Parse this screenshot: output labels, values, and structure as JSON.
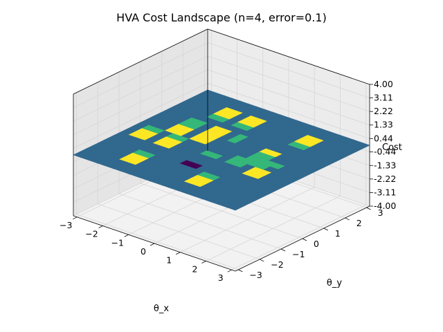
{
  "chart_data": {
    "type": "surface3d",
    "title": "HVA Cost Landscape (n=4, error=0.1)",
    "xlabel": "θ_x",
    "ylabel": "θ_y",
    "zlabel": "Cost",
    "xlim": [
      -3.14159,
      3.14159
    ],
    "ylim": [
      -3.14159,
      3.14159
    ],
    "zlim": [
      -4.0,
      4.0
    ],
    "x_ticks": [
      "−3",
      "−2",
      "−1",
      "0",
      "1",
      "2",
      "3"
    ],
    "y_ticks": [
      "−3",
      "−2",
      "−1",
      "0",
      "1",
      "2",
      "3"
    ],
    "z_ticks": [
      "-4.00",
      "-3.11",
      "-2.22",
      "-1.33",
      "-0.44",
      "0.44",
      "1.33",
      "2.22",
      "3.11",
      "4.00"
    ],
    "colormap": "viridis",
    "colors": {
      "base": "#31688e",
      "high": "#fde725",
      "mid": "#35b779",
      "low": "#440154",
      "pane": "#f2f2f2",
      "grid": "#d6d6d6"
    },
    "surface": {
      "grid_size": 20,
      "base_value": 0.0,
      "regions": [
        {
          "i": [
            4,
            5
          ],
          "j": [
            16,
            17
          ],
          "value": 4.0
        },
        {
          "i": [
            7,
            8
          ],
          "j": [
            16,
            17
          ],
          "value": 4.0
        },
        {
          "i": [
            14,
            15
          ],
          "j": [
            16,
            17
          ],
          "value": 4.0
        },
        {
          "i": [
            4,
            5
          ],
          "j": [
            15,
            15
          ],
          "value": 2.0
        },
        {
          "i": [
            7,
            8
          ],
          "j": [
            15,
            15
          ],
          "value": 2.0
        },
        {
          "i": [
            14,
            15
          ],
          "j": [
            15,
            15
          ],
          "value": 2.0
        },
        {
          "i": [
            3,
            4
          ],
          "j": [
            12,
            13
          ],
          "value": 2.0
        },
        {
          "i": [
            9,
            9
          ],
          "j": [
            12,
            13
          ],
          "value": 2.0
        },
        {
          "i": [
            6,
            7
          ],
          "j": [
            12,
            13
          ],
          "value": 4.0
        },
        {
          "i": [
            3,
            4
          ],
          "j": [
            10,
            11
          ],
          "value": 4.0
        },
        {
          "i": [
            6,
            7
          ],
          "j": [
            10,
            11
          ],
          "value": 4.0
        },
        {
          "i": [
            9,
            10
          ],
          "j": [
            8,
            8
          ],
          "value": 2.0
        },
        {
          "i": [
            9,
            10
          ],
          "j": [
            5,
            5
          ],
          "value": -4.0
        },
        {
          "i": [
            13,
            14
          ],
          "j": [
            10,
            11
          ],
          "value": 2.0
        },
        {
          "i": [
            13,
            14
          ],
          "j": [
            12,
            12
          ],
          "value": 4.0
        },
        {
          "i": [
            1,
            2
          ],
          "j": [
            7,
            8
          ],
          "value": 4.0
        },
        {
          "i": [
            1,
            2
          ],
          "j": [
            9,
            9
          ],
          "value": 2.0
        },
        {
          "i": [
            4,
            5
          ],
          "j": [
            7,
            8
          ],
          "value": 4.0
        },
        {
          "i": [
            4,
            5
          ],
          "j": [
            9,
            9
          ],
          "value": 2.0
        },
        {
          "i": [
            12,
            13
          ],
          "j": [
            8,
            9
          ],
          "value": 2.0
        },
        {
          "i": [
            15,
            16
          ],
          "j": [
            7,
            8
          ],
          "value": 4.0
        },
        {
          "i": [
            14,
            15
          ],
          "j": [
            9,
            9
          ],
          "value": 2.0
        },
        {
          "i": [
            4,
            5
          ],
          "j": [
            2,
            3
          ],
          "value": 4.0
        },
        {
          "i": [
            4,
            5
          ],
          "j": [
            4,
            4
          ],
          "value": 2.0
        },
        {
          "i": [
            12,
            13
          ],
          "j": [
            2,
            3
          ],
          "value": 4.0
        },
        {
          "i": [
            12,
            13
          ],
          "j": [
            4,
            4
          ],
          "value": 2.0
        },
        {
          "i": [
            15,
            16
          ],
          "j": [
            10,
            10
          ],
          "value": 2.0
        }
      ]
    }
  }
}
